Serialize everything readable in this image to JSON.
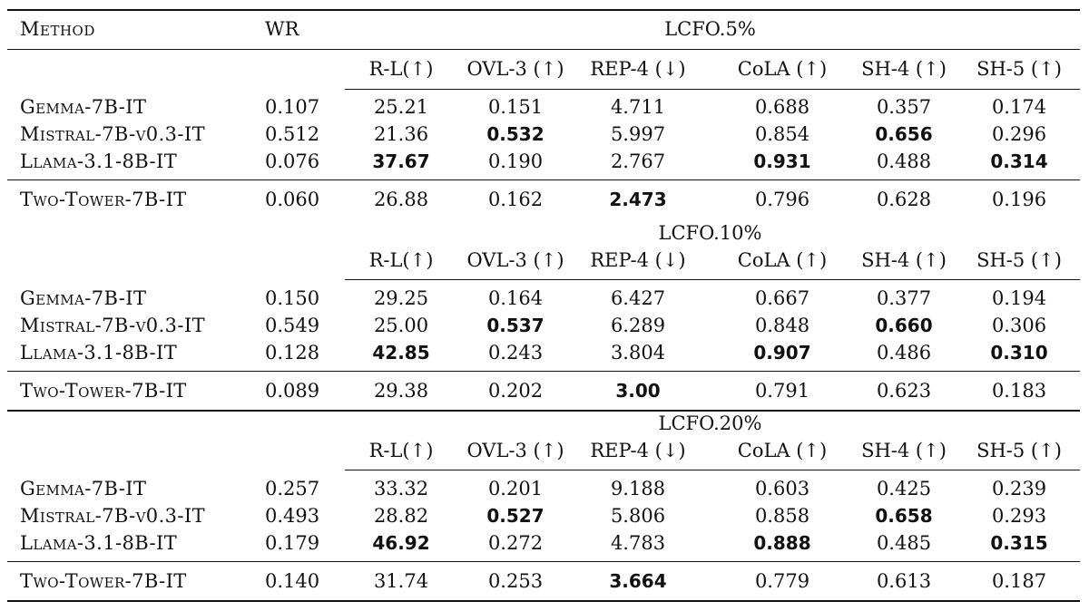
{
  "header": {
    "method": "Method",
    "wr": "WR"
  },
  "metric_headers": [
    "R-L(↑)",
    "OVL-3 (↑)",
    "REP-4 (↓)",
    "CoLA (↑)",
    "SH-4 (↑)",
    "SH-5 (↑)"
  ],
  "sections": [
    {
      "title": "LCFO.5%",
      "rows": [
        {
          "method": "Gemma-7B-IT",
          "wr": "0.107",
          "values": [
            "25.21",
            "0.151",
            "4.711",
            "0.688",
            "0.357",
            "0.174"
          ],
          "bold": [
            false,
            false,
            false,
            false,
            false,
            false
          ]
        },
        {
          "method": "Mistral-7B-v0.3-IT",
          "wr": "0.512",
          "values": [
            "21.36",
            "0.532",
            "5.997",
            "0.854",
            "0.656",
            "0.296"
          ],
          "bold": [
            false,
            true,
            false,
            false,
            true,
            false
          ]
        },
        {
          "method": "Llama-3.1-8B-IT",
          "wr": "0.076",
          "values": [
            "37.67",
            "0.190",
            "2.767",
            "0.931",
            "0.488",
            "0.314"
          ],
          "bold": [
            true,
            false,
            false,
            true,
            false,
            true
          ]
        },
        {
          "method": "Two-Tower-7B-IT",
          "wr": "0.060",
          "values": [
            "26.88",
            "0.162",
            "2.473",
            "0.796",
            "0.628",
            "0.196"
          ],
          "bold": [
            false,
            false,
            true,
            false,
            false,
            false
          ]
        }
      ]
    },
    {
      "title": "LCFO.10%",
      "rows": [
        {
          "method": "Gemma-7B-IT",
          "wr": "0.150",
          "values": [
            "29.25",
            "0.164",
            "6.427",
            "0.667",
            "0.377",
            "0.194"
          ],
          "bold": [
            false,
            false,
            false,
            false,
            false,
            false
          ]
        },
        {
          "method": "Mistral-7B-v0.3-IT",
          "wr": "0.549",
          "values": [
            "25.00",
            "0.537",
            "6.289",
            "0.848",
            "0.660",
            "0.306"
          ],
          "bold": [
            false,
            true,
            false,
            false,
            true,
            false
          ]
        },
        {
          "method": "Llama-3.1-8B-IT",
          "wr": "0.128",
          "values": [
            "42.85",
            "0.243",
            "3.804",
            "0.907",
            "0.486",
            "0.310"
          ],
          "bold": [
            true,
            false,
            false,
            true,
            false,
            true
          ]
        },
        {
          "method": "Two-Tower-7B-IT",
          "wr": "0.089",
          "values": [
            "29.38",
            "0.202",
            "3.00",
            "0.791",
            "0.623",
            "0.183"
          ],
          "bold": [
            false,
            false,
            true,
            false,
            false,
            false
          ]
        }
      ]
    },
    {
      "title": "LCFO.20%",
      "rows": [
        {
          "method": "Gemma-7B-IT",
          "wr": "0.257",
          "values": [
            "33.32",
            "0.201",
            "9.188",
            "0.603",
            "0.425",
            "0.239"
          ],
          "bold": [
            false,
            false,
            false,
            false,
            false,
            false
          ]
        },
        {
          "method": "Mistral-7B-v0.3-IT",
          "wr": "0.493",
          "values": [
            "28.82",
            "0.527",
            "5.806",
            "0.858",
            "0.658",
            "0.293"
          ],
          "bold": [
            false,
            true,
            false,
            false,
            true,
            false
          ]
        },
        {
          "method": "Llama-3.1-8B-IT",
          "wr": "0.179",
          "values": [
            "46.92",
            "0.272",
            "4.783",
            "0.888",
            "0.485",
            "0.315"
          ],
          "bold": [
            true,
            false,
            false,
            true,
            false,
            true
          ]
        },
        {
          "method": "Two-Tower-7B-IT",
          "wr": "0.140",
          "values": [
            "31.74",
            "0.253",
            "3.664",
            "0.779",
            "0.613",
            "0.187"
          ],
          "bold": [
            false,
            false,
            true,
            false,
            false,
            false
          ]
        }
      ]
    }
  ]
}
